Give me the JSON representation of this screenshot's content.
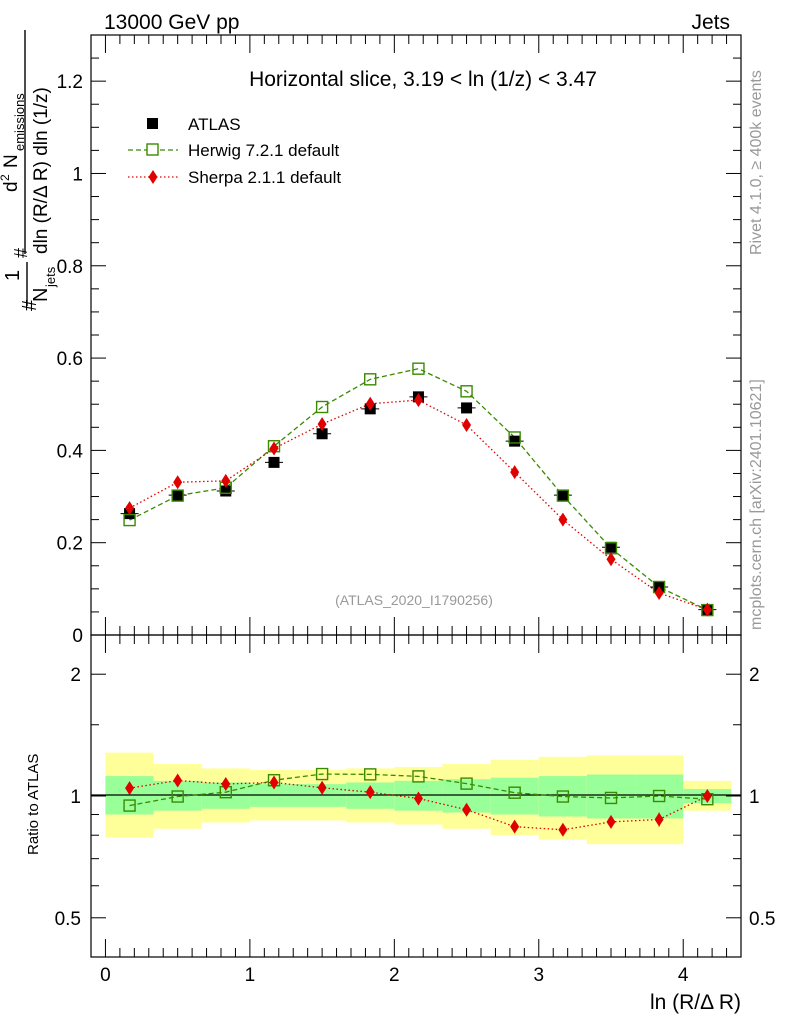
{
  "header": {
    "left": "13000 GeV pp",
    "right": "Jets"
  },
  "side_labels": {
    "top": "Rivet 4.1.0, ≥ 400k events",
    "bottom": "mcplots.cern.ch [arXiv:2401.10621]"
  },
  "colors": {
    "data": "#000000",
    "herwig": "#3a8a00",
    "sherpa": "#e00000",
    "band_outer": "#ffff99",
    "band_inner": "#99ff99",
    "watermark": "#999999"
  },
  "chart_data": [
    {
      "id": "main",
      "type": "scatter",
      "title": "Horizontal slice, 3.19 < ln (1/z) < 3.47",
      "watermark": "(ATLAS_2020_I1790256)",
      "ylabel": "1/N_jets d²N_emissions / dln(R/ΔR) dln(1/z)",
      "ylabel_parts": {
        "frac1_num": "1",
        "frac1_den": "N",
        "frac1_den_sub": "jets",
        "frac2_num": "d",
        "frac2_num_sup": "2",
        "frac2_num_N": "N",
        "frac2_num_sub": "emissions",
        "frac2_den": "dln (R/Δ R) dln (1/z)",
        "hash": "#"
      },
      "xlim": [
        -0.1,
        4.4
      ],
      "ylim": [
        0,
        1.3
      ],
      "yticks": [
        0,
        0.2,
        0.4,
        0.6,
        0.8,
        1,
        1.2
      ],
      "ytick_labels": [
        "0",
        "0.2",
        "0.4",
        "0.6",
        "0.8",
        "1",
        "1.2"
      ],
      "x": [
        0.167,
        0.5,
        0.833,
        1.167,
        1.5,
        1.833,
        2.167,
        2.5,
        2.833,
        3.167,
        3.5,
        3.833,
        4.167
      ],
      "legend": [
        "ATLAS",
        "Herwig 7.2.1 default",
        "Sherpa 2.1.1 default"
      ],
      "series": [
        {
          "name": "ATLAS",
          "style": "filled-square",
          "values": [
            0.263,
            0.303,
            0.312,
            0.374,
            0.436,
            0.49,
            0.516,
            0.492,
            0.42,
            0.303,
            0.19,
            0.104,
            0.055
          ],
          "errors": [
            0.012,
            0.01,
            0.01,
            0.01,
            0.01,
            0.01,
            0.01,
            0.01,
            0.01,
            0.008,
            0.006,
            0.005,
            0.004
          ]
        },
        {
          "name": "Herwig 7.2.1 default",
          "style": "open-square-dashed",
          "values": [
            0.249,
            0.302,
            0.319,
            0.409,
            0.494,
            0.554,
            0.577,
            0.528,
            0.428,
            0.302,
            0.188,
            0.104,
            0.054
          ]
        },
        {
          "name": "Sherpa 2.1.1 default",
          "style": "diamond-dotted",
          "values": [
            0.275,
            0.331,
            0.334,
            0.404,
            0.457,
            0.501,
            0.509,
            0.455,
            0.353,
            0.25,
            0.164,
            0.091,
            0.055
          ]
        }
      ]
    },
    {
      "id": "ratio",
      "type": "line",
      "ylabel": "Ratio to ATLAS",
      "xlabel": "ln (R/Δ R)",
      "xlim": [
        -0.1,
        4.4
      ],
      "xticks": [
        0,
        1,
        2,
        3,
        4
      ],
      "xtick_labels": [
        "0",
        "1",
        "2",
        "3",
        "4"
      ],
      "ylim": [
        0.4,
        2.5
      ],
      "ylog": true,
      "yticks": [
        0.5,
        1,
        2
      ],
      "ytick_labels": [
        "0.5",
        "1",
        "2"
      ],
      "bins": [
        [
          0,
          0.333
        ],
        [
          0.333,
          0.667
        ],
        [
          0.667,
          1.0
        ],
        [
          1.0,
          1.333
        ],
        [
          1.333,
          1.667
        ],
        [
          1.667,
          2.0
        ],
        [
          2.0,
          2.333
        ],
        [
          2.333,
          2.667
        ],
        [
          2.667,
          3.0
        ],
        [
          3.0,
          3.333
        ],
        [
          3.333,
          3.667
        ],
        [
          3.667,
          4.0
        ],
        [
          4.0,
          4.333
        ]
      ],
      "band_outer": [
        [
          0.79,
          1.28
        ],
        [
          0.83,
          1.2
        ],
        [
          0.86,
          1.17
        ],
        [
          0.87,
          1.16
        ],
        [
          0.87,
          1.16
        ],
        [
          0.86,
          1.17
        ],
        [
          0.85,
          1.18
        ],
        [
          0.83,
          1.2
        ],
        [
          0.8,
          1.23
        ],
        [
          0.78,
          1.25
        ],
        [
          0.76,
          1.26
        ],
        [
          0.76,
          1.26
        ],
        [
          0.92,
          1.09
        ]
      ],
      "band_inner": [
        [
          0.9,
          1.12
        ],
        [
          0.92,
          1.09
        ],
        [
          0.93,
          1.08
        ],
        [
          0.94,
          1.07
        ],
        [
          0.94,
          1.07
        ],
        [
          0.93,
          1.08
        ],
        [
          0.92,
          1.09
        ],
        [
          0.91,
          1.1
        ],
        [
          0.9,
          1.11
        ],
        [
          0.89,
          1.12
        ],
        [
          0.88,
          1.13
        ],
        [
          0.88,
          1.13
        ],
        [
          0.96,
          1.04
        ]
      ],
      "series": [
        {
          "name": "Herwig 7.2.1 default",
          "values": [
            0.947,
            0.997,
            1.022,
            1.094,
            1.133,
            1.131,
            1.118,
            1.073,
            1.019,
            0.997,
            0.989,
            1.0,
            0.982
          ]
        },
        {
          "name": "Sherpa 2.1.1 default",
          "values": [
            1.046,
            1.092,
            1.071,
            1.08,
            1.048,
            1.022,
            0.986,
            0.925,
            0.84,
            0.825,
            0.863,
            0.875,
            1.0
          ],
          "errors": [
            0.015,
            0.015,
            0.015,
            0.015,
            0.015,
            0.015,
            0.015,
            0.015,
            0.015,
            0.015,
            0.02,
            0.035,
            0.03
          ]
        }
      ]
    }
  ]
}
